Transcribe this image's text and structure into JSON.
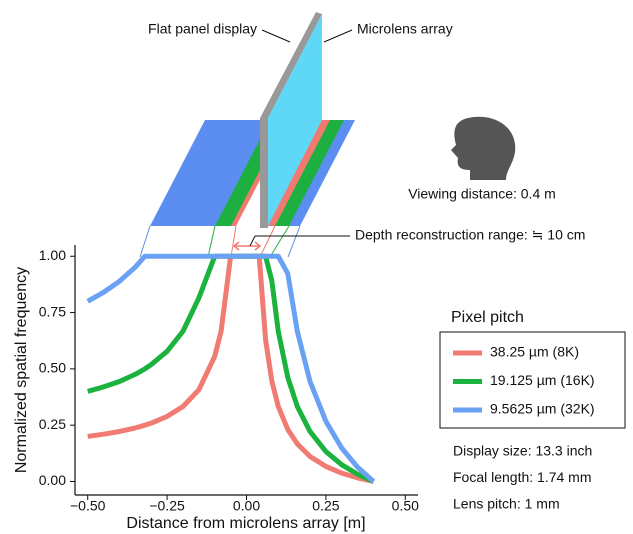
{
  "chart_data": {
    "type": "line",
    "x_label": "Distance from microlens array [m]",
    "y_label": "Normalized spatial frequency",
    "x": [
      -0.5,
      -0.45,
      -0.4,
      -0.35,
      -0.32,
      -0.3,
      -0.25,
      -0.2,
      -0.15,
      -0.1,
      -0.08,
      -0.05,
      -0.03,
      0,
      0.02,
      0.04,
      0.06,
      0.08,
      0.1,
      0.13,
      0.16,
      0.2,
      0.25,
      0.3,
      0.35,
      0.4
    ],
    "series": [
      {
        "name": "38.25 µm (8K)",
        "color": "#f07b72",
        "values": [
          0.2,
          0.21,
          0.222,
          0.238,
          0.25,
          0.259,
          0.289,
          0.333,
          0.407,
          0.556,
          0.667,
          1,
          1,
          1,
          1,
          1,
          0.63,
          0.444,
          0.333,
          0.231,
          0.167,
          0.111,
          0.067,
          0.037,
          0.016,
          0
        ]
      },
      {
        "name": "19.125 µm (16K)",
        "color": "#1bb33d",
        "values": [
          0.4,
          0.42,
          0.444,
          0.476,
          0.5,
          0.519,
          0.578,
          0.667,
          0.815,
          1,
          1,
          1,
          1,
          1,
          1,
          1,
          1,
          0.889,
          0.667,
          0.462,
          0.333,
          0.222,
          0.133,
          0.074,
          0.032,
          0
        ]
      },
      {
        "name": "9.5625 µm (32K)",
        "color": "#6aa1f5",
        "values": [
          0.8,
          0.84,
          0.889,
          0.952,
          1,
          1,
          1,
          1,
          1,
          1,
          1,
          1,
          1,
          1,
          1,
          1,
          1,
          1,
          1,
          0.923,
          0.667,
          0.444,
          0.267,
          0.148,
          0.063,
          0
        ]
      }
    ],
    "xlim": [
      -0.54,
      0.54
    ],
    "ylim": [
      -0.06,
      1.05
    ],
    "xticks": [
      {
        "value": -0.5,
        "label": "−0.50"
      },
      {
        "value": -0.25,
        "label": "−0.25"
      },
      {
        "value": 0,
        "label": "0.00"
      },
      {
        "value": 0.25,
        "label": "0.25"
      },
      {
        "value": 0.5,
        "label": "0.50"
      }
    ],
    "yticks": [
      {
        "value": 0,
        "label": "0.00"
      },
      {
        "value": 0.25,
        "label": "0.25"
      },
      {
        "value": 0.5,
        "label": "0.50"
      },
      {
        "value": 0.75,
        "label": "0.75"
      },
      {
        "value": 1,
        "label": "1.00"
      }
    ],
    "grid": false,
    "legend_title": "Pixel pitch",
    "annotations": [
      "Flat panel display",
      "Microlens array",
      "Viewing distance: 0.4 m",
      "Depth reconstruction range: ≒ 10 cm"
    ],
    "notes": [
      "Display size: 13.3 inch",
      "Focal length: 1.74 mm",
      "Lens pitch: 1 mm"
    ]
  }
}
